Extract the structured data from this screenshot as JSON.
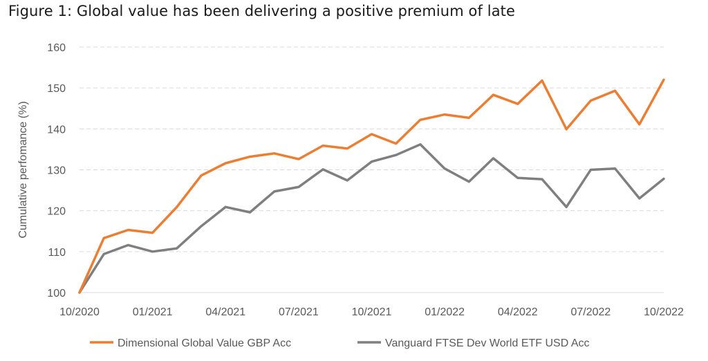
{
  "title": "Figure 1: Global value has been delivering a positive premium of late",
  "chart_data": {
    "type": "line",
    "title": "Figure 1: Global value has been delivering a positive premium of late",
    "xlabel": "",
    "ylabel": "Cumulative perfomance (%)",
    "ylim": [
      100,
      160
    ],
    "yticks": [
      100,
      110,
      120,
      130,
      140,
      150,
      160
    ],
    "xtick_labels": [
      "10/2020",
      "01/2021",
      "04/2021",
      "07/2021",
      "10/2021",
      "01/2022",
      "04/2022",
      "07/2022",
      "10/2022"
    ],
    "x": [
      "2020-10",
      "2020-11",
      "2020-12",
      "2021-01",
      "2021-02",
      "2021-03",
      "2021-04",
      "2021-05",
      "2021-06",
      "2021-07",
      "2021-08",
      "2021-09",
      "2021-10",
      "2021-11",
      "2021-12",
      "2022-01",
      "2022-02",
      "2022-03",
      "2022-04",
      "2022-05",
      "2022-06",
      "2022-07",
      "2022-08",
      "2022-09",
      "2022-10"
    ],
    "grid": true,
    "legend_position": "bottom",
    "series": [
      {
        "name": "Dimensional Global Value GBP Acc",
        "color": "#ED7D31",
        "values": [
          100,
          113.3,
          115.3,
          114.6,
          120.9,
          128.6,
          131.6,
          133.2,
          134.0,
          132.6,
          135.9,
          135.2,
          138.7,
          136.4,
          142.2,
          143.5,
          142.7,
          148.3,
          146.1,
          151.8,
          139.9,
          146.9,
          149.3,
          141.1,
          152.0
        ]
      },
      {
        "name": "Vanguard FTSE Dev World ETF USD Acc",
        "color": "#7F7F7F",
        "values": [
          100,
          109.4,
          111.6,
          110.0,
          110.8,
          116.2,
          120.9,
          119.6,
          124.7,
          125.8,
          130.1,
          127.4,
          132.0,
          133.6,
          136.2,
          130.3,
          127.1,
          132.8,
          128.0,
          127.7,
          120.9,
          130.0,
          130.3,
          123.0,
          127.8
        ]
      }
    ]
  }
}
